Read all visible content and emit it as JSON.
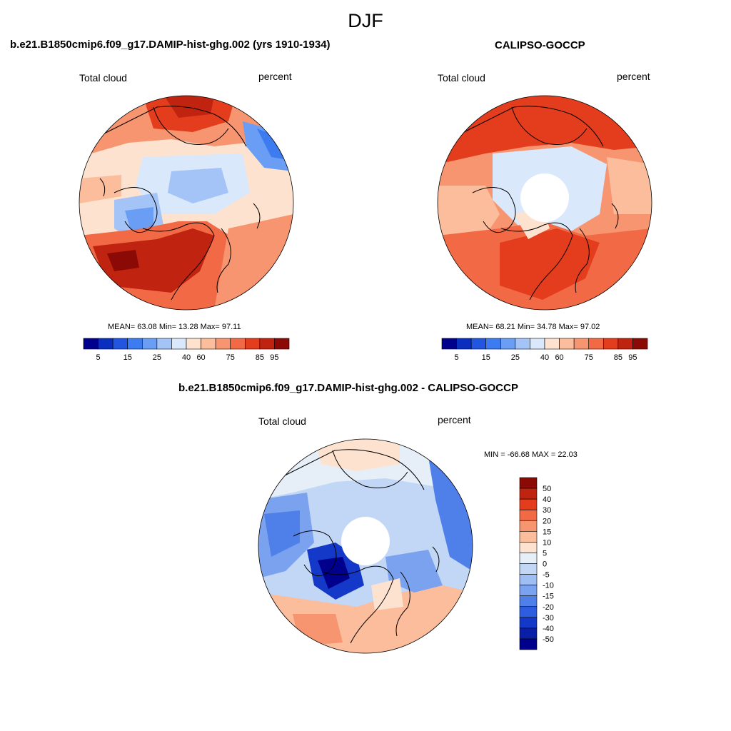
{
  "figure": {
    "title": "DJF"
  },
  "panels": [
    {
      "id": "model",
      "title": "b.e21.B1850cmip6.f09_g17.DAMIP-hist-ghg.002 (yrs 1910-1934)",
      "variable_label": "Total cloud",
      "units_label": "percent",
      "stats": "MEAN=  63.08  Min=  13.28  Max=  97.11",
      "colorbar": {
        "colors": [
          "#00008c",
          "#0a2fbf",
          "#2255e0",
          "#3c7cf0",
          "#6a9ef5",
          "#a4c4f8",
          "#d9e8fb",
          "#fde3cf",
          "#fbbd9c",
          "#f79570",
          "#f26a45",
          "#e33d1d",
          "#c02410",
          "#8c0a05"
        ],
        "tick_labels": [
          "5",
          "15",
          "25",
          "40",
          "60",
          "75",
          "85",
          "95"
        ]
      }
    },
    {
      "id": "obs",
      "title": "CALIPSO-GOCCP",
      "variable_label": "Total cloud",
      "units_label": "percent",
      "stats": "MEAN=  68.21  Min=  34.78  Max=  97.02",
      "colorbar": {
        "colors": [
          "#00008c",
          "#0a2fbf",
          "#2255e0",
          "#3c7cf0",
          "#6a9ef5",
          "#a4c4f8",
          "#d9e8fb",
          "#fde3cf",
          "#fbbd9c",
          "#f79570",
          "#f26a45",
          "#e33d1d",
          "#c02410",
          "#8c0a05"
        ],
        "tick_labels": [
          "5",
          "15",
          "25",
          "40",
          "60",
          "75",
          "85",
          "95"
        ]
      }
    },
    {
      "id": "diff",
      "title": "b.e21.B1850cmip6.f09_g17.DAMIP-hist-ghg.002 - CALIPSO-GOCCP",
      "variable_label": "Total cloud",
      "units_label": "percent",
      "stats": "MIN = -66.68 MAX =  22.03",
      "colorbar": {
        "colors": [
          "#8c0a05",
          "#c02410",
          "#e33d1d",
          "#f26a45",
          "#f79570",
          "#fbbd9c",
          "#fde3cf",
          "#e6eef8",
          "#c2d7f6",
          "#9fbef3",
          "#7aa2ee",
          "#4f7fe8",
          "#2e5de0",
          "#1438c8",
          "#0a1fa8",
          "#00008c"
        ],
        "tick_labels": [
          "50",
          "40",
          "30",
          "20",
          "15",
          "10",
          "5",
          "0",
          "-5",
          "-10",
          "-15",
          "-20",
          "-30",
          "-40",
          "-50"
        ]
      }
    }
  ],
  "icons": [
    "polar-map",
    "coastline",
    "colorbar"
  ]
}
